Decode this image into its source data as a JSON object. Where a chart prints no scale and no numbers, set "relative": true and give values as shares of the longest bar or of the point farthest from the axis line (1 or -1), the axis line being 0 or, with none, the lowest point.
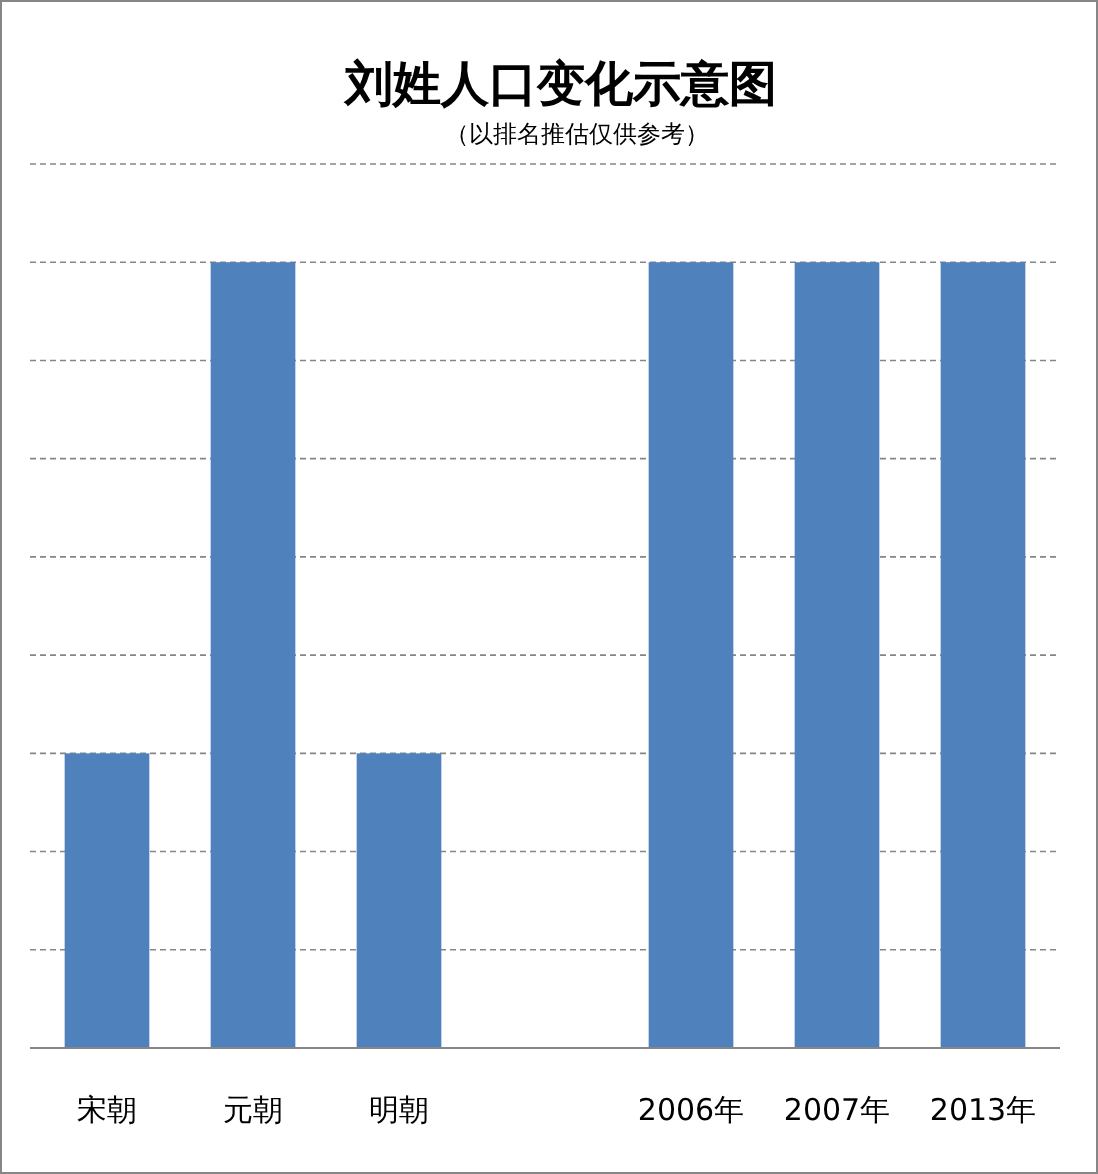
{
  "chart_data": {
    "type": "bar",
    "title": "刘姓人口变化示意图",
    "subtitle": "（以排名推估仅供参考）",
    "categories": [
      "宋朝",
      "元朝",
      "明朝",
      null,
      "2006年",
      "2007年",
      "2013年"
    ],
    "values": [
      0.375,
      1,
      0.375,
      null,
      1,
      1,
      1
    ],
    "color": "#4f81bd",
    "relative": true,
    "grid": "y"
  }
}
